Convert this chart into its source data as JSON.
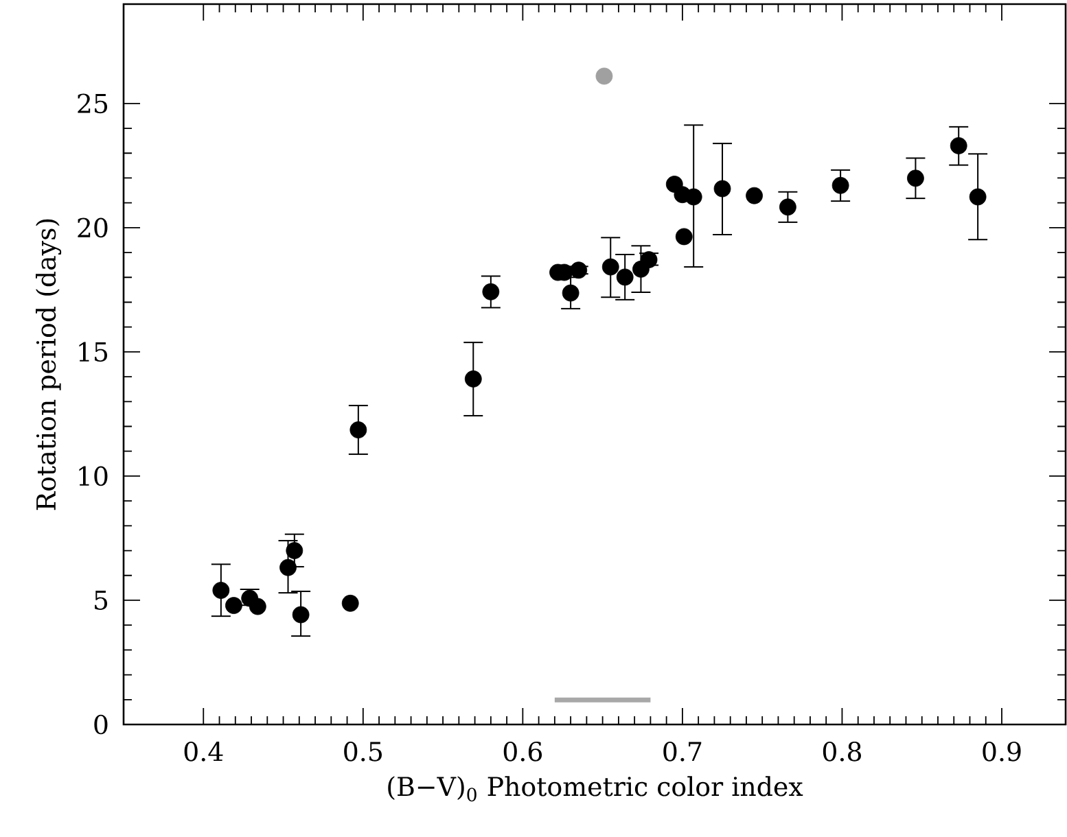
{
  "chart_data": {
    "type": "scatter",
    "xlabel": "(B−V)$_{0}$ Photometric color index",
    "ylabel": "Rotation period (days)",
    "xlim": [
      0.35,
      0.94
    ],
    "ylim": [
      0,
      29
    ],
    "xticks": [
      0.4,
      0.5,
      0.6,
      0.7,
      0.8,
      0.9
    ],
    "yticks": [
      0,
      5,
      10,
      15,
      20,
      25
    ],
    "grid": false,
    "legend": false,
    "series": [
      {
        "color": "#000000",
        "marker": "circle",
        "x": [
          0.411,
          0.419,
          0.429,
          0.434,
          0.453,
          0.457,
          0.461,
          0.492,
          0.497,
          0.569,
          0.58,
          0.622,
          0.626,
          0.63,
          0.635,
          0.655,
          0.664,
          0.674,
          0.679,
          0.695,
          0.7,
          0.701,
          0.707,
          0.725,
          0.745,
          0.766,
          0.799,
          0.846,
          0.873,
          0.885
        ],
        "values": [
          5.4,
          4.79,
          5.08,
          4.75,
          6.32,
          7.0,
          4.42,
          4.88,
          11.86,
          13.91,
          17.42,
          18.2,
          18.2,
          17.37,
          18.29,
          18.42,
          18.01,
          18.33,
          18.71,
          21.75,
          21.33,
          19.64,
          21.24,
          21.57,
          21.29,
          20.83,
          21.7,
          21.99,
          23.3,
          21.24
        ],
        "errors": [
          [
            4.36,
            6.45
          ],
          null,
          [
            4.8,
            5.44
          ],
          null,
          [
            5.3,
            7.4
          ],
          [
            6.35,
            7.66
          ],
          [
            3.56,
            5.36
          ],
          null,
          [
            10.88,
            12.84
          ],
          [
            12.43,
            15.38
          ],
          [
            16.78,
            18.05
          ],
          null,
          null,
          [
            16.74,
            18.0
          ],
          [
            18.14,
            18.44
          ],
          [
            17.2,
            19.6
          ],
          [
            17.1,
            18.92
          ],
          [
            17.4,
            19.27
          ],
          [
            18.49,
            18.97
          ],
          null,
          null,
          null,
          [
            18.42,
            24.13
          ],
          [
            19.72,
            23.39
          ],
          null,
          [
            20.22,
            21.44
          ],
          [
            21.07,
            22.32
          ],
          [
            21.18,
            22.8
          ],
          [
            22.52,
            24.06
          ],
          [
            19.52,
            22.97
          ]
        ]
      },
      {
        "color": "#a0a0a0",
        "marker": "circle",
        "x": [
          0.651
        ],
        "values": [
          26.1
        ]
      },
      {
        "type": "line",
        "color": "#a8a8a8",
        "marker": "none",
        "x": [
          0.62,
          0.68
        ],
        "values": [
          0.99,
          0.99
        ]
      }
    ]
  }
}
